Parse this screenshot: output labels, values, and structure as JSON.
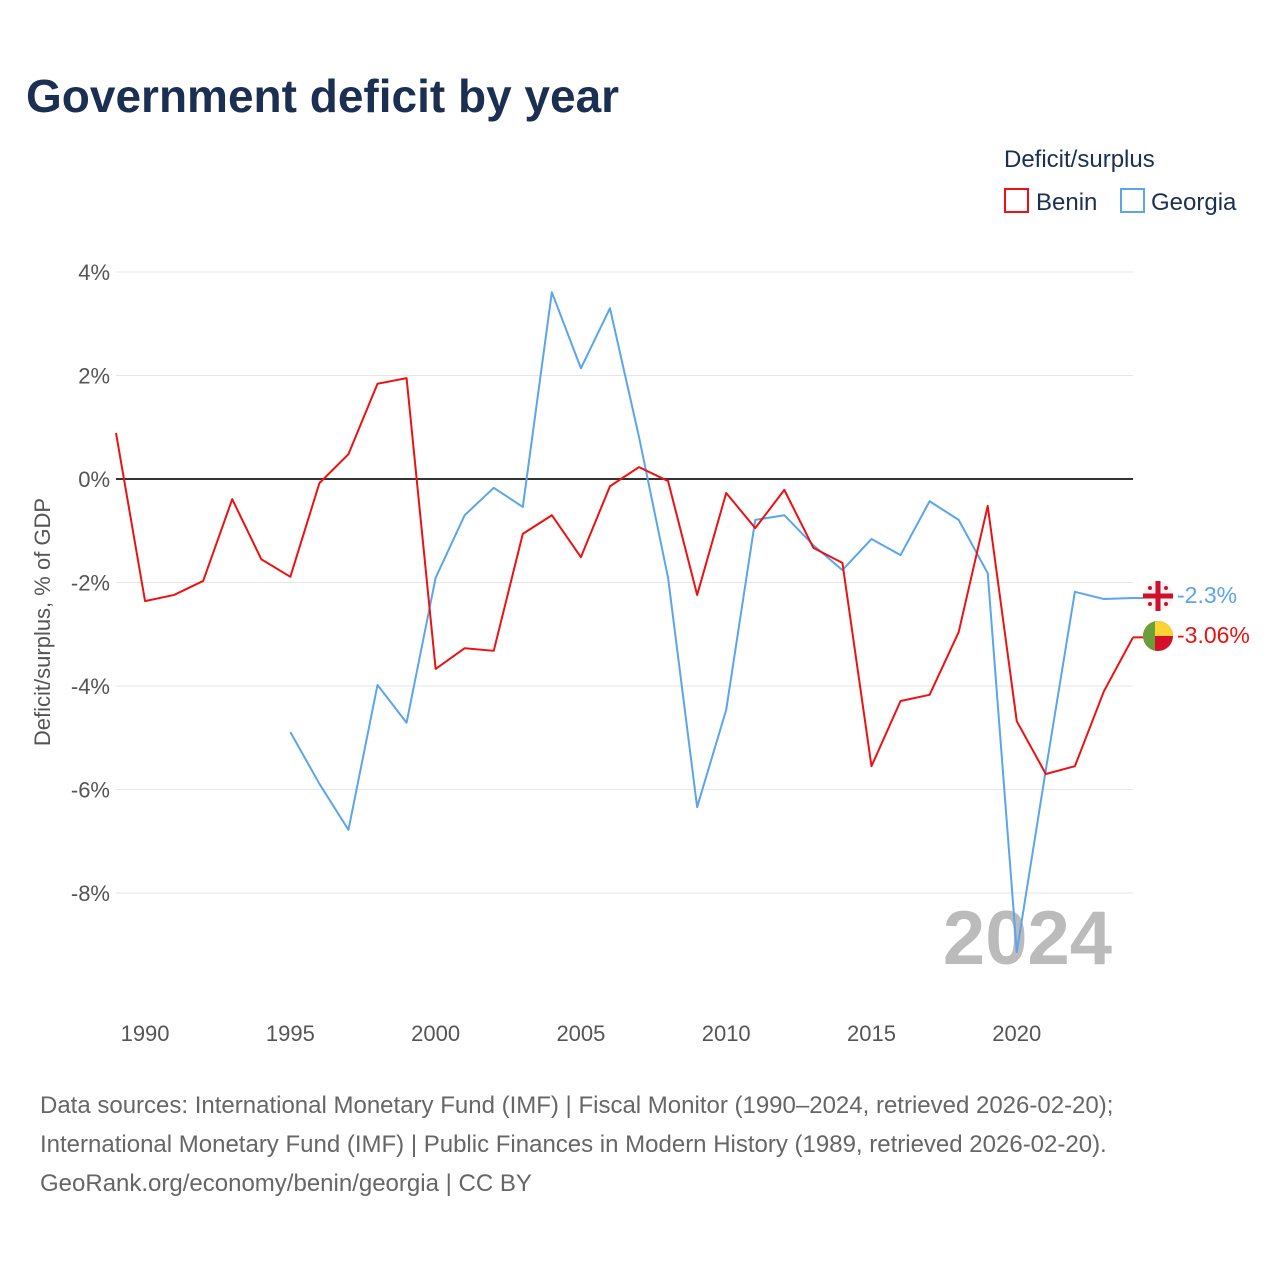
{
  "chart_data": {
    "type": "line",
    "title": "Government deficit by year",
    "ylabel": "Deficit/surplus, % of GDP",
    "xlabel": "",
    "xlim": [
      1989,
      2024
    ],
    "ylim": [
      -9.5,
      4.5
    ],
    "y_ticks": [
      4,
      2,
      0,
      -2,
      -4,
      -6,
      -8
    ],
    "y_tick_labels": [
      "4%",
      "2%",
      "0%",
      "-2%",
      "-4%",
      "-6%",
      "-8%"
    ],
    "x_ticks": [
      1990,
      1995,
      2000,
      2005,
      2010,
      2015,
      2020
    ],
    "x_tick_labels": [
      "1990",
      "1995",
      "2000",
      "2005",
      "2010",
      "2015",
      "2020"
    ],
    "grid": true,
    "legend": {
      "title": "Deficit/surplus",
      "placement": "top-right"
    },
    "watermark_year": "2024",
    "series": [
      {
        "name": "Benin",
        "color": "#ee1111",
        "end_label": "-3.06%",
        "flag": "benin-flag",
        "x": [
          1989,
          1990,
          1991,
          1992,
          1993,
          1994,
          1995,
          1996,
          1997,
          1998,
          1999,
          2000,
          2001,
          2002,
          2003,
          2004,
          2005,
          2006,
          2007,
          2008,
          2009,
          2010,
          2011,
          2012,
          2013,
          2014,
          2015,
          2016,
          2017,
          2018,
          2019,
          2020,
          2021,
          2022,
          2023,
          2024
        ],
        "values": [
          0.89,
          -2.36,
          -2.24,
          -1.97,
          -0.39,
          -1.55,
          -1.89,
          -0.08,
          0.48,
          1.84,
          1.95,
          -3.67,
          -3.27,
          -3.32,
          -1.06,
          -0.7,
          -1.51,
          -0.14,
          0.23,
          -0.04,
          -2.24,
          -0.27,
          -0.95,
          -0.21,
          -1.33,
          -1.62,
          -5.55,
          -4.29,
          -4.17,
          -2.96,
          -0.52,
          -4.68,
          -5.7,
          -5.55,
          -4.1,
          -3.06
        ]
      },
      {
        "name": "Georgia",
        "color": "#5aa5ec",
        "end_label": "-2.3%",
        "flag": "georgia-flag",
        "x": [
          1995,
          1996,
          1997,
          1998,
          1999,
          2000,
          2001,
          2002,
          2003,
          2004,
          2005,
          2006,
          2007,
          2008,
          2009,
          2010,
          2011,
          2012,
          2013,
          2014,
          2015,
          2016,
          2017,
          2018,
          2019,
          2020,
          2021,
          2022,
          2023,
          2024
        ],
        "values": [
          -4.89,
          -5.89,
          -6.78,
          -3.98,
          -4.71,
          -1.91,
          -0.7,
          -0.17,
          -0.54,
          3.61,
          2.14,
          3.3,
          0.81,
          -1.91,
          -6.34,
          -4.46,
          -0.79,
          -0.7,
          -1.28,
          -1.76,
          -1.16,
          -1.47,
          -0.43,
          -0.79,
          -1.82,
          -9.14,
          -5.62,
          -2.18,
          -2.32,
          -2.3
        ]
      }
    ]
  },
  "sources": [
    "Data sources: International Monetary Fund (IMF) | Fiscal Monitor (1990–2024, retrieved 2026-02-20);",
    "International Monetary Fund (IMF) | Public Finances in Modern History (1989, retrieved 2026-02-20).",
    "GeoRank.org/economy/benin/georgia | CC BY"
  ]
}
